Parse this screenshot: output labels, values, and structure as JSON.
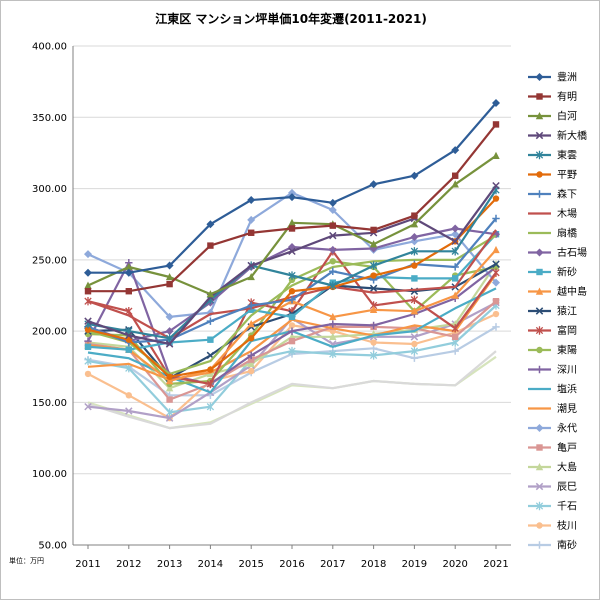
{
  "chart_data": {
    "type": "line",
    "title": "江東区 マンション坪単価10年変遷(2011-2021)",
    "unit_note": "単位：万円",
    "xlabel": "",
    "ylabel": "",
    "ylim": [
      50,
      400
    ],
    "yticks": [
      "50.00",
      "100.00",
      "150.00",
      "200.00",
      "250.00",
      "300.00",
      "350.00",
      "400.00"
    ],
    "ytick_values": [
      50,
      100,
      150,
      200,
      250,
      300,
      350,
      400
    ],
    "x": [
      "2011",
      "2012",
      "2013",
      "2014",
      "2015",
      "2016",
      "2017",
      "2018",
      "2019",
      "2020",
      "2021"
    ],
    "grid": true,
    "legend_position": "right",
    "series": [
      {
        "name": "豊洲",
        "color": "#2E5D97",
        "marker": "diamond",
        "values": [
          241,
          241,
          246,
          275,
          292,
          294,
          290,
          303,
          309,
          327,
          360
        ]
      },
      {
        "name": "有明",
        "color": "#943634",
        "marker": "square",
        "values": [
          228,
          228,
          233,
          260,
          269,
          272,
          274,
          271,
          281,
          309,
          345
        ]
      },
      {
        "name": "白河",
        "color": "#77923C",
        "marker": "triangle",
        "values": [
          232,
          245,
          238,
          226,
          238,
          276,
          275,
          261,
          275,
          303,
          323
        ]
      },
      {
        "name": "新大橋",
        "color": "#5F497A",
        "marker": "x",
        "values": [
          207,
          197,
          191,
          224,
          246,
          256,
          267,
          269,
          279,
          263,
          302
        ]
      },
      {
        "name": "東雲",
        "color": "#31849B",
        "marker": "star",
        "values": [
          205,
          200,
          195,
          222,
          246,
          239,
          232,
          246,
          256,
          256,
          299
        ]
      },
      {
        "name": "平野",
        "color": "#E26B0A",
        "marker": "circle",
        "values": [
          201,
          194,
          168,
          173,
          195,
          228,
          231,
          239,
          246,
          263,
          293
        ]
      },
      {
        "name": "森下",
        "color": "#4F81BD",
        "marker": "plus",
        "values": [
          203,
          192,
          194,
          207,
          218,
          222,
          242,
          236,
          247,
          245,
          279
        ]
      },
      {
        "name": "木場",
        "color": "#C0504D",
        "marker": "none",
        "values": [
          221,
          211,
          195,
          212,
          216,
          224,
          231,
          227,
          229,
          231,
          271
        ]
      },
      {
        "name": "扇橋",
        "color": "#9BBB59",
        "marker": "none",
        "values": [
          200,
          192,
          170,
          179,
          211,
          232,
          245,
          249,
          250,
          250,
          267
        ]
      },
      {
        "name": "古石場",
        "color": "#8064A2",
        "marker": "diamond",
        "values": [
          203,
          193,
          200,
          220,
          245,
          259,
          257,
          258,
          266,
          272,
          268
        ]
      },
      {
        "name": "新砂",
        "color": "#4BACC6",
        "marker": "square",
        "values": [
          189,
          187,
          192,
          194,
          215,
          210,
          234,
          238,
          237,
          237,
          268
        ]
      },
      {
        "name": "越中島",
        "color": "#F79646",
        "marker": "triangle",
        "values": [
          190,
          187,
          165,
          173,
          205,
          221,
          210,
          215,
          214,
          225,
          257
        ]
      },
      {
        "name": "猿江",
        "color": "#2C4D75",
        "marker": "x",
        "values": [
          200,
          201,
          167,
          183,
          203,
          212,
          232,
          230,
          228,
          231,
          247
        ]
      },
      {
        "name": "富岡",
        "color": "#C0504D",
        "marker": "star",
        "values": [
          221,
          214,
          168,
          163,
          220,
          214,
          256,
          218,
          222,
          202,
          241
        ]
      },
      {
        "name": "東陽",
        "color": "#9BBB59",
        "marker": "circle",
        "values": [
          198,
          197,
          163,
          165,
          197,
          236,
          249,
          245,
          214,
          239,
          245
        ]
      },
      {
        "name": "深川",
        "color": "#8064A2",
        "marker": "plus",
        "values": [
          193,
          248,
          169,
          163,
          183,
          200,
          205,
          204,
          212,
          223,
          245
        ]
      },
      {
        "name": "塩浜",
        "color": "#4BACC6",
        "marker": "none",
        "values": [
          185,
          181,
          168,
          157,
          193,
          200,
          189,
          197,
          200,
          216,
          230
        ]
      },
      {
        "name": "潮見",
        "color": "#F79646",
        "marker": "none",
        "values": [
          175,
          177,
          166,
          171,
          186,
          208,
          202,
          197,
          204,
          200,
          240
        ]
      },
      {
        "name": "永代",
        "color": "#8EA9DB",
        "marker": "diamond",
        "values": [
          254,
          241,
          210,
          213,
          278,
          297,
          285,
          257,
          263,
          268,
          234
        ]
      },
      {
        "name": "亀戸",
        "color": "#DA9694",
        "marker": "square",
        "values": [
          191,
          187,
          152,
          163,
          180,
          193,
          203,
          203,
          202,
          196,
          221
        ]
      },
      {
        "name": "大島",
        "color": "#C4D79B",
        "marker": "triangle",
        "values": [
          192,
          189,
          160,
          170,
          177,
          196,
          196,
          198,
          201,
          205,
          247
        ]
      },
      {
        "name": "辰巳",
        "color": "#B1A0C7",
        "marker": "x",
        "values": [
          147,
          144,
          139,
          157,
          176,
          209,
          191,
          196,
          196,
          205,
          220
        ]
      },
      {
        "name": "千石",
        "color": "#92CDDC",
        "marker": "star",
        "values": [
          179,
          174,
          143,
          147,
          180,
          186,
          184,
          183,
          186,
          192,
          218
        ]
      },
      {
        "name": "枝川",
        "color": "#FABF8F",
        "marker": "circle",
        "values": [
          170,
          155,
          139,
          165,
          172,
          204,
          200,
          192,
          191,
          199,
          212
        ]
      },
      {
        "name": "南砂",
        "color": "#B8CCE4",
        "marker": "plus",
        "values": [
          180,
          175,
          155,
          155,
          171,
          184,
          186,
          188,
          181,
          186,
          203
        ]
      },
      {
        "name": "",
        "color": "#D9D9D9",
        "marker": "none",
        "values": [
          149,
          140,
          132,
          135,
          150,
          163,
          160,
          165,
          163,
          162,
          186
        ]
      },
      {
        "name": "",
        "color": "#D6E4BC",
        "marker": "none",
        "values": [
          150,
          141,
          132,
          136,
          149,
          162,
          160,
          165,
          163,
          162,
          182
        ]
      }
    ]
  }
}
